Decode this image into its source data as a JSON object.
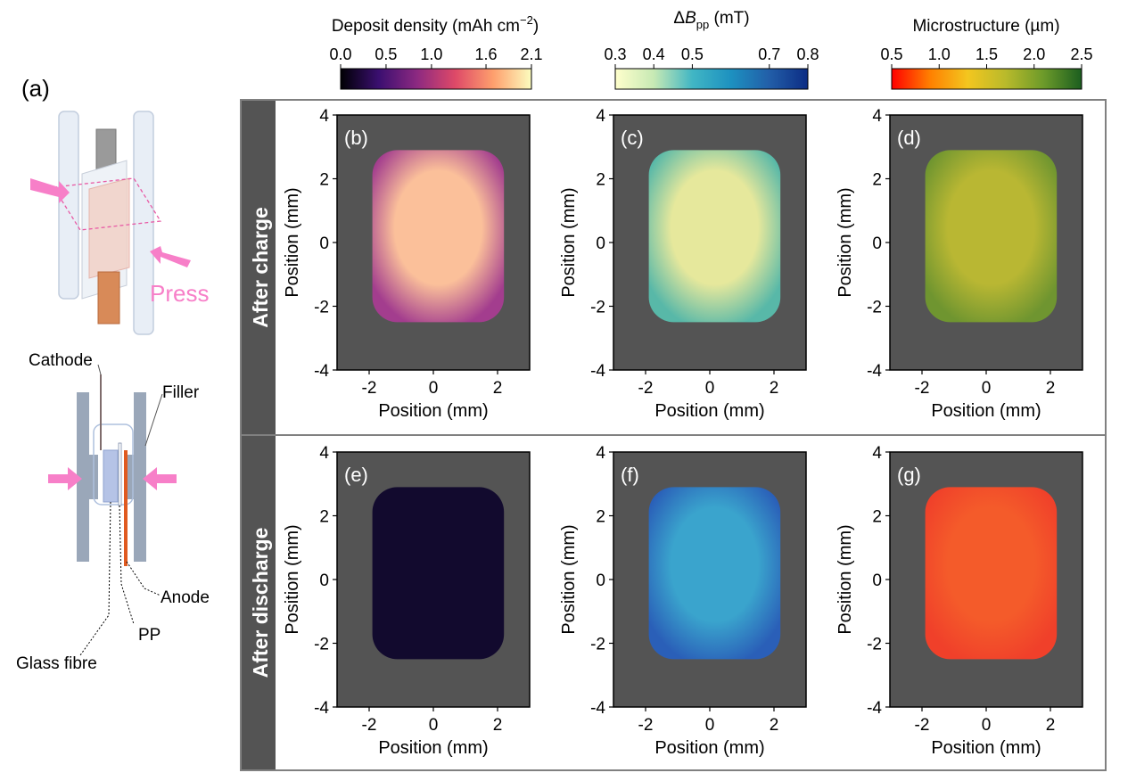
{
  "panel_a_label": "(a)",
  "schematic": {
    "press_label": "Press",
    "labels": {
      "cathode": "Cathode",
      "filler": "Filler",
      "anode": "Anode",
      "pp": "PP",
      "glass_fibre": "Glass fibre"
    }
  },
  "colorbars": [
    {
      "title": "Deposit density (mAh cm",
      "title_sup": "−2",
      "title_end": ")",
      "ticks": [
        "0.0",
        "0.5",
        "1.0",
        "1.6",
        "2.1"
      ],
      "tick_values": [
        0.0,
        0.5,
        1.0,
        1.6,
        2.1
      ],
      "range": [
        0.0,
        2.1
      ],
      "stops": [
        "#000004",
        "#3b0f70",
        "#8c2981",
        "#de4968",
        "#fe9f6d",
        "#fcfdbf"
      ]
    },
    {
      "title_delta": "Δ",
      "title_b": "B",
      "title_sub": "pp",
      "title_end": " (mT)",
      "ticks": [
        "0.3",
        "0.4",
        "0.5",
        "0.7",
        "0.8"
      ],
      "tick_values": [
        0.3,
        0.4,
        0.5,
        0.7,
        0.8
      ],
      "range": [
        0.3,
        0.8
      ],
      "stops": [
        "#ffffcc",
        "#c7e9b4",
        "#41b6c4",
        "#1d91c0",
        "#225ea8",
        "#0c2c84"
      ]
    },
    {
      "title": "Microstructure (µm)",
      "ticks": [
        "0.5",
        "1.0",
        "1.5",
        "2.0",
        "2.5"
      ],
      "tick_values": [
        0.5,
        1.0,
        1.5,
        2.0,
        2.5
      ],
      "range": [
        0.5,
        2.5
      ],
      "stops": [
        "#ff0000",
        "#ff7f00",
        "#f3c61f",
        "#b9ba2b",
        "#6c9a2a",
        "#1b5e1f"
      ]
    }
  ],
  "rows": [
    "After charge",
    "After discharge"
  ],
  "panels": [
    {
      "label": "(b)",
      "fill": "#fbc09a",
      "edge": "#a33d8e"
    },
    {
      "label": "(c)",
      "fill": "#e6e89c",
      "edge": "#58b8a8"
    },
    {
      "label": "(d)",
      "fill": "#b9b733",
      "edge": "#6f9530"
    },
    {
      "label": "(e)",
      "fill": "#120a2e",
      "edge": "#120a2e"
    },
    {
      "label": "(f)",
      "fill": "#3aa4cd",
      "edge": "#2a5fb8"
    },
    {
      "label": "(g)",
      "fill": "#f45b2a",
      "edge": "#f0402a"
    }
  ],
  "axes": {
    "xlabel": "Position (mm)",
    "ylabel": "Position (mm)",
    "xlim": [
      -3,
      3
    ],
    "ylim": [
      -4,
      4
    ],
    "xticks": [
      -2,
      0,
      2
    ],
    "yticks": [
      -4,
      -2,
      0,
      2,
      4
    ]
  },
  "colors": {
    "plot_bg": "#545454",
    "row_strip": "#545454",
    "frame": "#808080",
    "press_arrow": "#f77fc8"
  }
}
